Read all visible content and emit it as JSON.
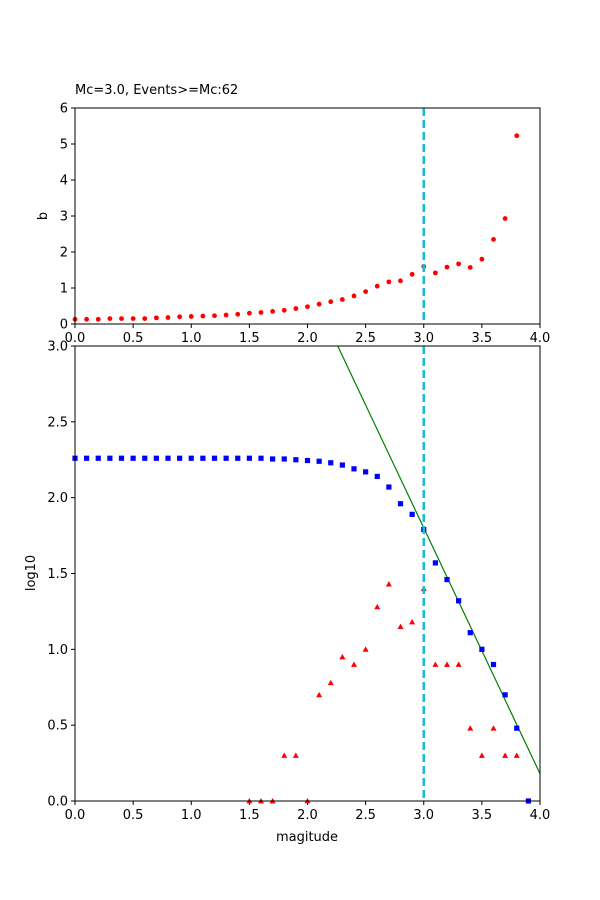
{
  "chart_data": [
    {
      "type": "scatter",
      "title": "Mc=3.0, Events>=Mc:62",
      "xlabel": "",
      "ylabel": "b",
      "xlim": [
        0,
        4
      ],
      "ylim": [
        0,
        6
      ],
      "x_ticks": [
        "0.0",
        "0.5",
        "1.0",
        "1.5",
        "2.0",
        "2.5",
        "3.0",
        "3.5",
        "4.0"
      ],
      "y_ticks": [
        "0",
        "1",
        "2",
        "3",
        "4",
        "5",
        "6"
      ],
      "mc_line": 3.0,
      "mc_color": "#17becf",
      "series": [
        {
          "marker": "circle",
          "color": "#ff0000",
          "points": [
            [
              0.0,
              0.13
            ],
            [
              0.1,
              0.13
            ],
            [
              0.2,
              0.13
            ],
            [
              0.3,
              0.15
            ],
            [
              0.4,
              0.15
            ],
            [
              0.5,
              0.15
            ],
            [
              0.6,
              0.15
            ],
            [
              0.7,
              0.17
            ],
            [
              0.8,
              0.18
            ],
            [
              0.9,
              0.2
            ],
            [
              1.0,
              0.21
            ],
            [
              1.1,
              0.22
            ],
            [
              1.2,
              0.23
            ],
            [
              1.3,
              0.25
            ],
            [
              1.4,
              0.27
            ],
            [
              1.5,
              0.3
            ],
            [
              1.6,
              0.32
            ],
            [
              1.7,
              0.35
            ],
            [
              1.8,
              0.38
            ],
            [
              1.9,
              0.43
            ],
            [
              2.0,
              0.48
            ],
            [
              2.1,
              0.55
            ],
            [
              2.2,
              0.62
            ],
            [
              2.3,
              0.68
            ],
            [
              2.4,
              0.78
            ],
            [
              2.5,
              0.9
            ],
            [
              2.6,
              1.05
            ],
            [
              2.7,
              1.17
            ],
            [
              2.8,
              1.2
            ],
            [
              2.9,
              1.38
            ],
            [
              3.0,
              1.6
            ],
            [
              3.1,
              1.42
            ],
            [
              3.2,
              1.58
            ],
            [
              3.3,
              1.67
            ],
            [
              3.4,
              1.57
            ],
            [
              3.5,
              1.8
            ],
            [
              3.6,
              2.35
            ],
            [
              3.7,
              2.93
            ],
            [
              3.8,
              5.23
            ]
          ]
        }
      ]
    },
    {
      "type": "scatter",
      "title": "",
      "xlabel": "magitude",
      "ylabel": "log10",
      "xlim": [
        0,
        4
      ],
      "ylim": [
        0,
        3
      ],
      "x_ticks": [
        "0.0",
        "0.5",
        "1.0",
        "1.5",
        "2.0",
        "2.5",
        "3.0",
        "3.5",
        "4.0"
      ],
      "y_ticks": [
        "0.0",
        "0.5",
        "1.0",
        "1.5",
        "2.0",
        "2.5",
        "3.0"
      ],
      "mc_line": 3.0,
      "mc_color": "#17becf",
      "series": [
        {
          "marker": "square",
          "color": "#0000ff",
          "points": [
            [
              0.0,
              2.26
            ],
            [
              0.1,
              2.26
            ],
            [
              0.2,
              2.26
            ],
            [
              0.3,
              2.26
            ],
            [
              0.4,
              2.26
            ],
            [
              0.5,
              2.26
            ],
            [
              0.6,
              2.26
            ],
            [
              0.7,
              2.26
            ],
            [
              0.8,
              2.26
            ],
            [
              0.9,
              2.26
            ],
            [
              1.0,
              2.26
            ],
            [
              1.1,
              2.26
            ],
            [
              1.2,
              2.26
            ],
            [
              1.3,
              2.26
            ],
            [
              1.4,
              2.26
            ],
            [
              1.5,
              2.26
            ],
            [
              1.6,
              2.26
            ],
            [
              1.7,
              2.255
            ],
            [
              1.8,
              2.255
            ],
            [
              1.9,
              2.25
            ],
            [
              2.0,
              2.245
            ],
            [
              2.1,
              2.24
            ],
            [
              2.2,
              2.23
            ],
            [
              2.3,
              2.215
            ],
            [
              2.4,
              2.19
            ],
            [
              2.5,
              2.17
            ],
            [
              2.6,
              2.14
            ],
            [
              2.7,
              2.07
            ],
            [
              2.8,
              1.96
            ],
            [
              2.9,
              1.89
            ],
            [
              3.0,
              1.79
            ],
            [
              3.1,
              1.57
            ],
            [
              3.2,
              1.46
            ],
            [
              3.3,
              1.32
            ],
            [
              3.4,
              1.11
            ],
            [
              3.5,
              1.0
            ],
            [
              3.6,
              0.9
            ],
            [
              3.7,
              0.7
            ],
            [
              3.8,
              0.48
            ],
            [
              3.9,
              0.0
            ]
          ]
        },
        {
          "marker": "triangle",
          "color": "#ff0000",
          "points": [
            [
              1.5,
              0.0
            ],
            [
              1.6,
              0.0
            ],
            [
              1.7,
              0.0
            ],
            [
              1.8,
              0.3
            ],
            [
              1.9,
              0.3
            ],
            [
              2.0,
              0.0
            ],
            [
              2.1,
              0.7
            ],
            [
              2.2,
              0.78
            ],
            [
              2.3,
              0.95
            ],
            [
              2.4,
              0.9
            ],
            [
              2.5,
              1.0
            ],
            [
              2.6,
              1.28
            ],
            [
              2.7,
              1.43
            ],
            [
              2.8,
              1.15
            ],
            [
              2.9,
              1.18
            ],
            [
              3.0,
              1.4
            ],
            [
              3.1,
              0.9
            ],
            [
              3.2,
              0.9
            ],
            [
              3.3,
              0.9
            ],
            [
              3.4,
              0.48
            ],
            [
              3.5,
              0.3
            ],
            [
              3.6,
              0.48
            ],
            [
              3.7,
              0.3
            ],
            [
              3.8,
              0.3
            ]
          ]
        },
        {
          "marker": "line",
          "color": "#008000",
          "points": [
            [
              2.26,
              3.0
            ],
            [
              4.0,
              0.18
            ]
          ]
        }
      ]
    }
  ]
}
